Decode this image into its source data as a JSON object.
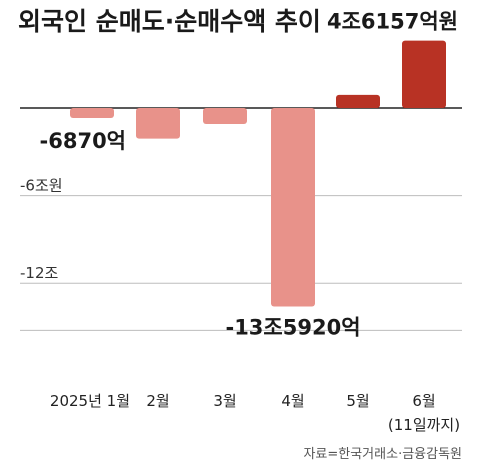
{
  "chart_data": {
    "type": "bar",
    "title": "외국인 순매도·순매수액 추이",
    "categories": [
      "2025년 1월",
      "2월",
      "3월",
      "4월",
      "5월",
      "6월"
    ],
    "category_note": "(11일까지)",
    "values": [
      -0.687,
      -2.1,
      -1.1,
      -13.592,
      0.9,
      4.6157
    ],
    "unit": "조원",
    "ylim": [
      -14.0,
      5.0
    ],
    "yticks": [
      {
        "value": -6,
        "label": "-6조원"
      },
      {
        "value": -12,
        "label": "-12조"
      }
    ],
    "data_labels": [
      {
        "index": 0,
        "text": "-6870억"
      },
      {
        "index": 3,
        "text": "-13조5920억"
      },
      {
        "index": 5,
        "text": "4조6157억원"
      }
    ],
    "colors": {
      "negative": "#e8928a",
      "positive": "#b83224",
      "zero_line": "#222222",
      "grid": "#bdbdbd"
    },
    "grid": true,
    "source": "자료=한국거래소·금융감독원"
  }
}
